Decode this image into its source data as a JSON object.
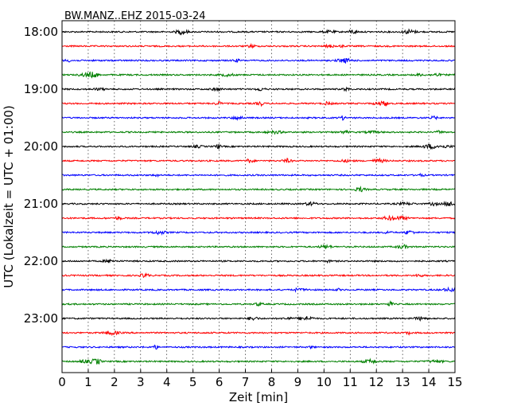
{
  "chart_data": {
    "type": "line",
    "title": "BW.MANZ..EHZ 2015-03-24",
    "xlabel": "Zeit  [min]",
    "ylabel": "UTC (Lokalzeit = UTC + 01:00)",
    "xlim": [
      0,
      15
    ],
    "x_ticks": [
      "0",
      "1",
      "2",
      "3",
      "4",
      "5",
      "6",
      "7",
      "8",
      "9",
      "10",
      "11",
      "12",
      "13",
      "14",
      "15"
    ],
    "y_tick_labels": [
      "18:00",
      "19:00",
      "20:00",
      "21:00",
      "22:00",
      "23:00"
    ],
    "grid": "vertical dotted",
    "trace_colors": [
      "#000000",
      "#ff0000",
      "#0000ff",
      "#008000"
    ],
    "traces": [
      {
        "start": "18:00",
        "color": "#000000"
      },
      {
        "start": "18:15",
        "color": "#ff0000"
      },
      {
        "start": "18:30",
        "color": "#0000ff"
      },
      {
        "start": "18:45",
        "color": "#008000"
      },
      {
        "start": "19:00",
        "color": "#000000"
      },
      {
        "start": "19:15",
        "color": "#ff0000"
      },
      {
        "start": "19:30",
        "color": "#0000ff"
      },
      {
        "start": "19:45",
        "color": "#008000"
      },
      {
        "start": "20:00",
        "color": "#000000"
      },
      {
        "start": "20:15",
        "color": "#ff0000"
      },
      {
        "start": "20:30",
        "color": "#0000ff"
      },
      {
        "start": "20:45",
        "color": "#008000"
      },
      {
        "start": "21:00",
        "color": "#000000"
      },
      {
        "start": "21:15",
        "color": "#ff0000"
      },
      {
        "start": "21:30",
        "color": "#0000ff"
      },
      {
        "start": "21:45",
        "color": "#008000"
      },
      {
        "start": "22:00",
        "color": "#000000"
      },
      {
        "start": "22:15",
        "color": "#ff0000"
      },
      {
        "start": "22:30",
        "color": "#0000ff"
      },
      {
        "start": "22:45",
        "color": "#008000"
      },
      {
        "start": "23:00",
        "color": "#000000"
      },
      {
        "start": "23:15",
        "color": "#ff0000"
      },
      {
        "start": "23:30",
        "color": "#0000ff"
      },
      {
        "start": "23:45",
        "color": "#008000"
      }
    ]
  }
}
